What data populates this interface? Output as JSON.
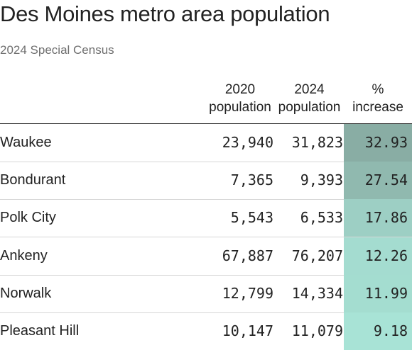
{
  "title": "Des Moines metro area population",
  "subtitle": "2024 Special Census",
  "columns": {
    "pop2020": [
      "2020",
      "population"
    ],
    "pop2024": [
      "2024",
      "population"
    ],
    "pct": [
      "%",
      "increase"
    ]
  },
  "colors": {
    "heat_low": "#a8e3d6",
    "heat_high": "#89ada4",
    "text": "#222222",
    "subtitle": "#6f6f6f",
    "rule": "#333333",
    "row_separator": "#d6d6d6"
  },
  "chart_data": {
    "type": "table",
    "title": "Des Moines metro area population",
    "subtitle": "2024 Special Census",
    "columns": [
      "",
      "2020 population",
      "2024 population",
      "% increase"
    ],
    "rows": [
      {
        "city": "Waukee",
        "pop2020": "23,940",
        "pop2024": "31,823",
        "pct": "32.93",
        "pct_value": 32.93
      },
      {
        "city": "Bondurant",
        "pop2020": "7,365",
        "pop2024": "9,393",
        "pct": "27.54",
        "pct_value": 27.54
      },
      {
        "city": "Polk City",
        "pop2020": "5,543",
        "pop2024": "6,533",
        "pct": "17.86",
        "pct_value": 17.86
      },
      {
        "city": "Ankeny",
        "pop2020": "67,887",
        "pop2024": "76,207",
        "pct": "12.26",
        "pct_value": 12.26
      },
      {
        "city": "Norwalk",
        "pop2020": "12,799",
        "pop2024": "14,334",
        "pct": "11.99",
        "pct_value": 11.99
      },
      {
        "city": "Pleasant Hill",
        "pop2020": "10,147",
        "pop2024": "11,079",
        "pct": "9.18",
        "pct_value": 9.18
      }
    ]
  }
}
